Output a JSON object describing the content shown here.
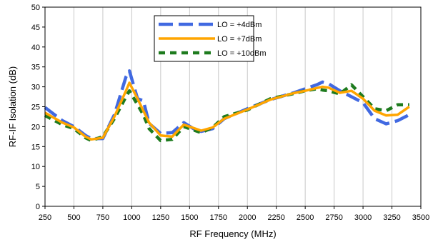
{
  "chart_data": {
    "type": "line",
    "title": "",
    "xlabel": "RF Frequency (MHz)",
    "ylabel": "RF-IF Isolation (dB)",
    "xlim": [
      250,
      3500
    ],
    "ylim": [
      0,
      50
    ],
    "xticks": [
      250,
      500,
      750,
      1000,
      1250,
      1500,
      1750,
      2000,
      2250,
      2500,
      2750,
      3000,
      3250,
      3500
    ],
    "yticks": [
      0,
      5,
      10,
      15,
      20,
      25,
      30,
      35,
      40,
      45,
      50
    ],
    "grid": "vertical",
    "legend_position": "top-center",
    "series": [
      {
        "name": "LO = +4dBm",
        "color": "#4169E1",
        "style": "long-dash",
        "x": [
          250,
          400,
          500,
          600,
          650,
          750,
          850,
          950,
          980,
          1050,
          1100,
          1150,
          1250,
          1350,
          1450,
          1550,
          1600,
          1700,
          1800,
          2000,
          2200,
          2400,
          2500,
          2600,
          2650,
          2700,
          2800,
          2900,
          3000,
          3100,
          3200,
          3300,
          3400
        ],
        "values": [
          24.8,
          21.5,
          20.0,
          17.8,
          17.0,
          17.0,
          23.0,
          32.5,
          34.0,
          27.0,
          26.5,
          20.8,
          18.3,
          18.5,
          21.0,
          19.2,
          18.8,
          19.5,
          22.0,
          24.5,
          26.8,
          28.5,
          29.5,
          30.5,
          31.2,
          30.8,
          29.0,
          27.5,
          26.0,
          22.0,
          20.7,
          21.5,
          23.0
        ]
      },
      {
        "name": "LO = +7dBm",
        "color": "#FFA500",
        "style": "solid",
        "x": [
          250,
          400,
          500,
          600,
          650,
          750,
          850,
          950,
          980,
          1050,
          1100,
          1150,
          1250,
          1350,
          1450,
          1550,
          1600,
          1700,
          1800,
          2000,
          2200,
          2400,
          2500,
          2600,
          2650,
          2700,
          2800,
          2900,
          3000,
          3100,
          3200,
          3300,
          3400
        ],
        "values": [
          23.5,
          21.0,
          19.8,
          17.5,
          16.8,
          17.2,
          22.5,
          29.0,
          31.0,
          27.0,
          24.0,
          21.0,
          17.8,
          17.5,
          20.5,
          19.5,
          19.0,
          19.8,
          22.0,
          24.3,
          26.8,
          28.4,
          29.0,
          29.7,
          30.0,
          29.8,
          28.5,
          29.0,
          27.0,
          24.0,
          22.8,
          23.0,
          25.0
        ]
      },
      {
        "name": "LO = +10dBm",
        "color": "#1E7B1E",
        "style": "short-dash",
        "x": [
          250,
          400,
          500,
          600,
          650,
          750,
          850,
          950,
          980,
          1050,
          1100,
          1150,
          1250,
          1350,
          1450,
          1550,
          1600,
          1700,
          1800,
          2000,
          2200,
          2400,
          2500,
          2600,
          2650,
          2700,
          2800,
          2900,
          3000,
          3100,
          3200,
          3300,
          3400
        ],
        "values": [
          22.8,
          20.5,
          19.5,
          17.2,
          16.5,
          17.5,
          22.0,
          27.5,
          29.0,
          25.5,
          23.0,
          19.5,
          16.5,
          16.8,
          20.0,
          19.0,
          18.5,
          19.8,
          22.5,
          24.2,
          27.0,
          28.3,
          29.0,
          29.5,
          29.2,
          29.0,
          28.2,
          30.5,
          27.5,
          24.5,
          24.0,
          25.5,
          25.5
        ]
      }
    ]
  }
}
